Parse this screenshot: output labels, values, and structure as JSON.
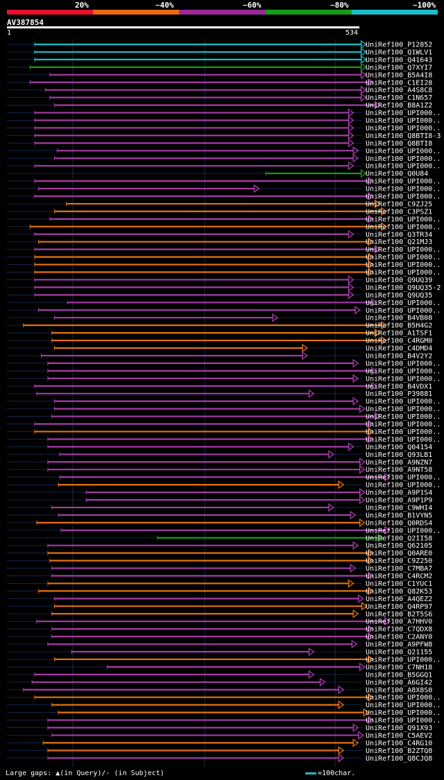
{
  "legend": {
    "labels": [
      "20%",
      "~40%",
      "~60%",
      "~80%",
      "~100%"
    ],
    "colors": [
      "#e8102a",
      "#ea6a12",
      "#9a2a9a",
      "#1a9a1a",
      "#19bfc9"
    ]
  },
  "query": {
    "name": "AV387854",
    "start": "1",
    "end": "534"
  },
  "footer": {
    "large_gaps": "Large gaps: ▲(in Query)/- (in Subject)",
    "scale_note": "=100char."
  },
  "colors": {
    "cyan": "#19bfc9",
    "green": "#1a9a1a",
    "purple": "#a83ca8",
    "orange": "#e8720c",
    "background": "#000000",
    "grid": "#1a2a4a"
  },
  "chart_data": {
    "type": "alignment",
    "query_length": 534,
    "hits": [
      {
        "name": "UniRef100_P12852",
        "color": "cyan",
        "start": 42,
        "end": 544
      },
      {
        "name": "UniRef100_Q1WLV1",
        "color": "cyan",
        "start": 42,
        "end": 544
      },
      {
        "name": "UniRef100_Q41643",
        "color": "cyan",
        "start": 42,
        "end": 544
      },
      {
        "name": "UniRef100_Q7XYI7",
        "color": "green",
        "start": 35,
        "end": 544
      },
      {
        "name": "UniRef100_B5A4I8",
        "color": "purple",
        "start": 65,
        "end": 544
      },
      {
        "name": "UniRef100_C1EI28",
        "color": "purple",
        "start": 35,
        "end": 555
      },
      {
        "name": "UniRef100_A4S8C8",
        "color": "purple",
        "start": 58,
        "end": 544
      },
      {
        "name": "UniRef100_C1N657",
        "color": "purple",
        "start": 65,
        "end": 544
      },
      {
        "name": "UniRef100_B8A1Z2",
        "color": "purple",
        "start": 72,
        "end": 565
      },
      {
        "name": "UniRef100_UPI000..",
        "color": "purple",
        "start": 42,
        "end": 525
      },
      {
        "name": "UniRef100_UPI000..",
        "color": "purple",
        "start": 42,
        "end": 525
      },
      {
        "name": "UniRef100_UPI000..",
        "color": "purple",
        "start": 42,
        "end": 525
      },
      {
        "name": "UniRef100_Q8BTI8-3",
        "color": "purple",
        "start": 42,
        "end": 525
      },
      {
        "name": "UniRef100_Q8BTI8",
        "color": "purple",
        "start": 42,
        "end": 525
      },
      {
        "name": "UniRef100_UPI000..",
        "color": "purple",
        "start": 76,
        "end": 532
      },
      {
        "name": "UniRef100_UPI000..",
        "color": "purple",
        "start": 72,
        "end": 532
      },
      {
        "name": "UniRef100_UPI000..",
        "color": "purple",
        "start": 42,
        "end": 525
      },
      {
        "name": "UniRef100_Q0U84",
        "color": "green",
        "start": 392,
        "end": 544
      },
      {
        "name": "UniRef100_UPI000..",
        "color": "purple",
        "start": 42,
        "end": 555
      },
      {
        "name": "UniRef100_UPI000..",
        "color": "purple",
        "start": 48,
        "end": 382
      },
      {
        "name": "UniRef100_UPI000..",
        "color": "purple",
        "start": 42,
        "end": 555
      },
      {
        "name": "UniRef100_C9ZJ25",
        "color": "orange",
        "start": 90,
        "end": 565
      },
      {
        "name": "UniRef100_C3PSZ1",
        "color": "orange",
        "start": 72,
        "end": 575
      },
      {
        "name": "UniRef100_UPI000..",
        "color": "purple",
        "start": 65,
        "end": 555
      },
      {
        "name": "UniRef100_UPI000..",
        "color": "orange",
        "start": 35,
        "end": 575
      },
      {
        "name": "UniRef100_Q3TR34",
        "color": "purple",
        "start": 42,
        "end": 525
      },
      {
        "name": "UniRef100_Q21MJ3",
        "color": "orange",
        "start": 48,
        "end": 555
      },
      {
        "name": "UniRef100_UPI000..",
        "color": "purple",
        "start": 42,
        "end": 565
      },
      {
        "name": "UniRef100_UPI000..",
        "color": "orange",
        "start": 42,
        "end": 555
      },
      {
        "name": "UniRef100_UPI000..",
        "color": "orange",
        "start": 42,
        "end": 555
      },
      {
        "name": "UniRef100_UPI000..",
        "color": "orange",
        "start": 42,
        "end": 555
      },
      {
        "name": "UniRef100_Q9UQ39",
        "color": "purple",
        "start": 42,
        "end": 525
      },
      {
        "name": "UniRef100_Q9UQ35-2",
        "color": "purple",
        "start": 42,
        "end": 525
      },
      {
        "name": "UniRef100_Q9UQ35",
        "color": "purple",
        "start": 42,
        "end": 525
      },
      {
        "name": "UniRef100_UPI000..",
        "color": "purple",
        "start": 92,
        "end": 560
      },
      {
        "name": "UniRef100_UPI000..",
        "color": "purple",
        "start": 48,
        "end": 535
      },
      {
        "name": "UniRef100_B4VB08",
        "color": "purple",
        "start": 72,
        "end": 410
      },
      {
        "name": "UniRef100_B5H4G2",
        "color": "orange",
        "start": 25,
        "end": 575
      },
      {
        "name": "UniRef100_A1TSF1",
        "color": "orange",
        "start": 68,
        "end": 565
      },
      {
        "name": "UniRef100_C4RGM0",
        "color": "orange",
        "start": 68,
        "end": 575
      },
      {
        "name": "UniRef100_C4DMD4",
        "color": "orange",
        "start": 72,
        "end": 455
      },
      {
        "name": "UniRef100_B4V2Y2",
        "color": "purple",
        "start": 52,
        "end": 455
      },
      {
        "name": "UniRef100_UPI000..",
        "color": "purple",
        "start": 62,
        "end": 532
      },
      {
        "name": "UniRef100_UPI000..",
        "color": "purple",
        "start": 62,
        "end": 560
      },
      {
        "name": "UniRef100_UPI000..",
        "color": "purple",
        "start": 62,
        "end": 532
      },
      {
        "name": "UniRef100_B4VDX1",
        "color": "purple",
        "start": 42,
        "end": 560
      },
      {
        "name": "UniRef100_P39881",
        "color": "purple",
        "start": 45,
        "end": 465
      },
      {
        "name": "UniRef100_UPI000..",
        "color": "purple",
        "start": 72,
        "end": 532
      },
      {
        "name": "UniRef100_UPI000..",
        "color": "purple",
        "start": 72,
        "end": 542
      },
      {
        "name": "UniRef100_UPI000..",
        "color": "purple",
        "start": 68,
        "end": 565
      },
      {
        "name": "UniRef100_UPI000..",
        "color": "purple",
        "start": 42,
        "end": 555
      },
      {
        "name": "UniRef100_UPI000..",
        "color": "orange",
        "start": 42,
        "end": 555
      },
      {
        "name": "UniRef100_UPI000..",
        "color": "purple",
        "start": 62,
        "end": 555
      },
      {
        "name": "UniRef100_Q04154",
        "color": "purple",
        "start": 62,
        "end": 525
      },
      {
        "name": "UniRef100_Q93LB1",
        "color": "purple",
        "start": 80,
        "end": 495
      },
      {
        "name": "UniRef100_A9NZN7",
        "color": "purple",
        "start": 62,
        "end": 542
      },
      {
        "name": "UniRef100_A9NT58",
        "color": "purple",
        "start": 62,
        "end": 542
      },
      {
        "name": "UniRef100_UPI000..",
        "color": "purple",
        "start": 80,
        "end": 580
      },
      {
        "name": "UniRef100_UPI000..",
        "color": "orange",
        "start": 78,
        "end": 510
      },
      {
        "name": "UniRef100_A9P1S4",
        "color": "purple",
        "start": 120,
        "end": 542
      },
      {
        "name": "UniRef100_A9P1P9",
        "color": "purple",
        "start": 120,
        "end": 542
      },
      {
        "name": "UniRef100_C9WHI4",
        "color": "purple",
        "start": 68,
        "end": 495
      },
      {
        "name": "UniRef100_B1VYN5",
        "color": "purple",
        "start": 78,
        "end": 528
      },
      {
        "name": "UniRef100_Q0RDS4",
        "color": "orange",
        "start": 45,
        "end": 542
      },
      {
        "name": "UniRef100_UPI000..",
        "color": "purple",
        "start": 82,
        "end": 580
      },
      {
        "name": "UniRef100_Q2II58",
        "color": "green",
        "start": 228,
        "end": 570
      },
      {
        "name": "UniRef100_Q62105",
        "color": "purple",
        "start": 62,
        "end": 532
      },
      {
        "name": "UniRef100_Q0ARE0",
        "color": "orange",
        "start": 62,
        "end": 555
      },
      {
        "name": "UniRef100_C9Z250",
        "color": "orange",
        "start": 65,
        "end": 555
      },
      {
        "name": "UniRef100_C7MBA7",
        "color": "purple",
        "start": 68,
        "end": 528
      },
      {
        "name": "UniRef100_C4RCM2",
        "color": "purple",
        "start": 68,
        "end": 555
      },
      {
        "name": "UniRef100_C1YUC1",
        "color": "orange",
        "start": 62,
        "end": 525
      },
      {
        "name": "UniRef100_Q82K53",
        "color": "orange",
        "start": 48,
        "end": 555
      },
      {
        "name": "UniRef100_A4QEZ2",
        "color": "purple",
        "start": 72,
        "end": 540
      },
      {
        "name": "UniRef100_Q4RP97",
        "color": "orange",
        "start": 72,
        "end": 545
      },
      {
        "name": "UniRef100_B2T5S6",
        "color": "orange",
        "start": 68,
        "end": 532
      },
      {
        "name": "UniRef100_A7HHV0",
        "color": "purple",
        "start": 45,
        "end": 580
      },
      {
        "name": "UniRef100_C7QDX8",
        "color": "purple",
        "start": 68,
        "end": 555
      },
      {
        "name": "UniRef100_C2ANY0",
        "color": "purple",
        "start": 68,
        "end": 555
      },
      {
        "name": "UniRef100_A9PFW8",
        "color": "purple",
        "start": 62,
        "end": 530
      },
      {
        "name": "UniRef100_Q21155",
        "color": "purple",
        "start": 98,
        "end": 465
      },
      {
        "name": "UniRef100_UPI000..",
        "color": "orange",
        "start": 72,
        "end": 555
      },
      {
        "name": "UniRef100_C7NH18",
        "color": "purple",
        "start": 152,
        "end": 542
      },
      {
        "name": "UniRef100_B5GGQ1",
        "color": "purple",
        "start": 42,
        "end": 465
      },
      {
        "name": "UniRef100_A6GI42",
        "color": "purple",
        "start": 38,
        "end": 482
      },
      {
        "name": "UniRef100_A8X8S0",
        "color": "purple",
        "start": 25,
        "end": 510
      },
      {
        "name": "UniRef100_UPI000..",
        "color": "orange",
        "start": 42,
        "end": 555
      },
      {
        "name": "UniRef100_UPI000..",
        "color": "orange",
        "start": 68,
        "end": 510
      },
      {
        "name": "UniRef100_UPI000..",
        "color": "orange",
        "start": 78,
        "end": 548
      },
      {
        "name": "UniRef100_UPI000..",
        "color": "purple",
        "start": 62,
        "end": 555
      },
      {
        "name": "UniRef100_Q91X93",
        "color": "purple",
        "start": 62,
        "end": 532
      },
      {
        "name": "UniRef100_C5AEV2",
        "color": "purple",
        "start": 68,
        "end": 540
      },
      {
        "name": "UniRef100_C4RG10",
        "color": "orange",
        "start": 55,
        "end": 532
      },
      {
        "name": "UniRef100_B2ZTQ8",
        "color": "orange",
        "start": 62,
        "end": 510
      },
      {
        "name": "UniRef100_Q8CJQ8",
        "color": "purple",
        "start": 62,
        "end": 510
      }
    ]
  }
}
